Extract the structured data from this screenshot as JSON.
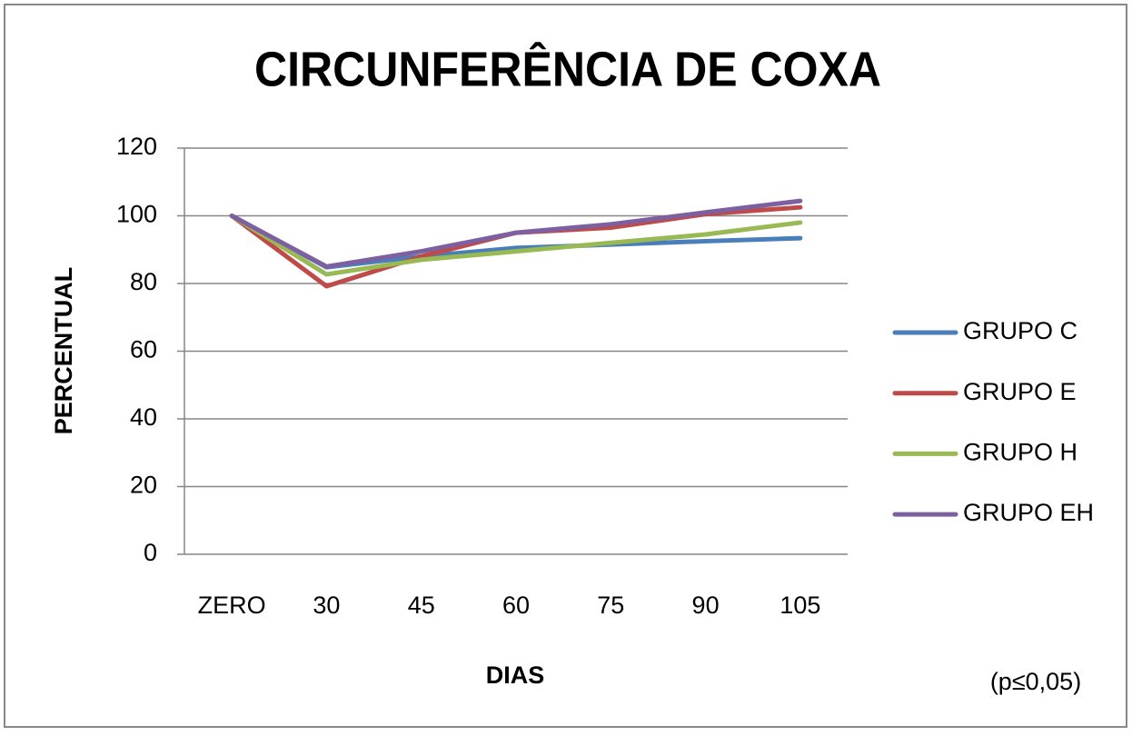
{
  "chart_data": {
    "type": "line",
    "title": "CIRCUNFERÊNCIA DE COXA",
    "x_label": "DIAS",
    "y_label": "PERCENTUAL",
    "annotation": "(p≤0,05)",
    "categories": [
      "ZERO",
      "30",
      "45",
      "60",
      "75",
      "90",
      "105"
    ],
    "series": [
      {
        "name": "GRUPO C",
        "color": "#4a7ebb",
        "values": [
          100,
          84.8,
          88,
          90.5,
          91.5,
          92.5,
          93.4
        ]
      },
      {
        "name": "GRUPO E",
        "color": "#be4b48",
        "values": [
          100,
          79.2,
          88,
          95,
          96.5,
          100.5,
          102.5
        ]
      },
      {
        "name": "GRUPO H",
        "color": "#98b954",
        "values": [
          100,
          82.7,
          87,
          89.5,
          92,
          94.5,
          98
        ]
      },
      {
        "name": "GRUPO EH",
        "color": "#7d60a0",
        "values": [
          100,
          85,
          89.5,
          95,
          97.5,
          101,
          104.4
        ]
      }
    ],
    "ylim": [
      0,
      120
    ],
    "yticks": [
      0,
      20,
      40,
      60,
      80,
      100,
      120
    ],
    "grid": true,
    "legend": "right"
  }
}
